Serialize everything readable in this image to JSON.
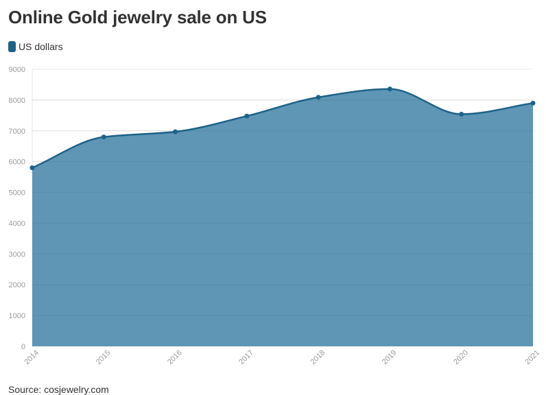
{
  "title": "Online Gold jewelry sale on US",
  "source": "Source: cosjewelry.com",
  "colors": {
    "series_line": "#1e6287",
    "area_fill": "#5f96b5",
    "legend_swatch": "#1e6287",
    "grid": "#e8e8e8",
    "tick_label": "#9a9a9a"
  },
  "chart_data": {
    "type": "area",
    "x": [
      "2014",
      "2015",
      "2016",
      "2017",
      "2018",
      "2019",
      "2020",
      "2021"
    ],
    "series": [
      {
        "name": "US dollars",
        "values": [
          5800,
          6800,
          6970,
          7480,
          8090,
          8360,
          7540,
          7900
        ]
      }
    ],
    "ylim": [
      0,
      9000
    ],
    "yticks": [
      0,
      1000,
      2000,
      3000,
      4000,
      5000,
      6000,
      7000,
      8000,
      9000
    ],
    "grid": true,
    "legend_position": "top-left",
    "xlabel": "",
    "ylabel": ""
  }
}
